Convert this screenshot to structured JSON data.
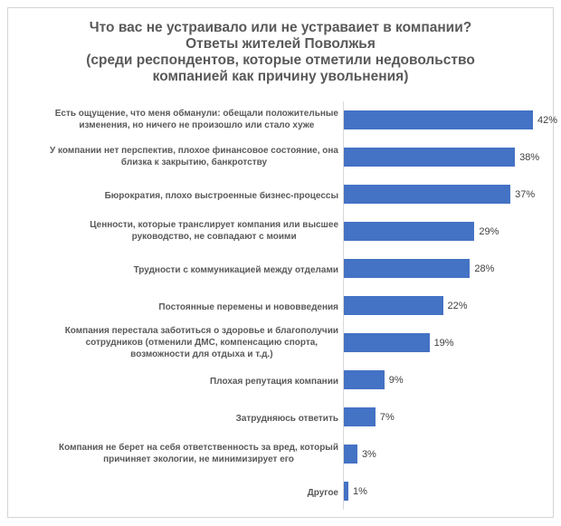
{
  "chart_data": {
    "type": "bar",
    "orientation": "horizontal",
    "title": "Что вас не устраивало или не устраваиет в компании?\nОтветы жителей Поволжья\n(среди респондентов, которые отметили недовольство\nкомпанией как причину увольнения)",
    "categories": [
      "Есть ощущение, что меня обманули: обещали положительные\nизменения, но ничего не произошло или стало хуже",
      "У компании нет перспектив, плохое финансовое состояние, она\nблизка к закрытию, банкротству",
      "Бюрократия, плохо выстроенные бизнес-процессы",
      "Ценности, которые транслирует компания или высшее\nруководство, не совпадают с моими",
      "Трудности с коммуникацией между отделами",
      "Постоянные перемены и нововведения",
      "Компания перестала заботиться о здоровье и благополучии\nсотрудников (отменили ДМС, компенсацию спорта,\nвозможности для отдыха и т.д.)",
      "Плохая репутация компании",
      "Затрудняюсь ответить",
      "Компания не берет на себя ответственность за вред, который\nпричиняет экологии, не минимизирует его",
      "Другое"
    ],
    "values": [
      42,
      38,
      37,
      29,
      28,
      22,
      19,
      9,
      7,
      3,
      1
    ],
    "value_labels": [
      "42%",
      "38%",
      "37%",
      "29%",
      "28%",
      "22%",
      "19%",
      "9%",
      "7%",
      "3%",
      "1%"
    ],
    "xlabel": "",
    "ylabel": "",
    "xlim": [
      0,
      45
    ],
    "grid": false,
    "legend": false,
    "bar_color": "#4472c4",
    "title_color": "#595959",
    "label_color": "#595959",
    "value_color": "#404040",
    "axis_line_color": "#d9d9d9",
    "frame_border_color": "#d4d4d4"
  }
}
